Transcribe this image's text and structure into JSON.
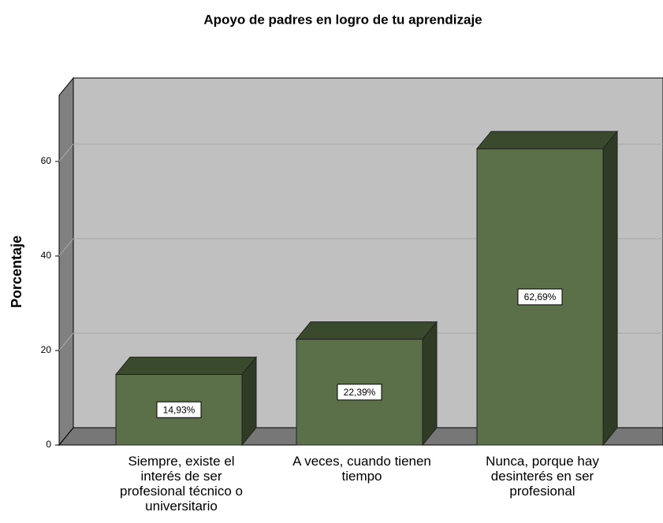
{
  "chart_data": {
    "type": "bar3d",
    "title": "Apoyo de padres en logro de tu aprendizaje",
    "ylabel": "Porcentaje",
    "categories": [
      "Siempre, existe el interés de ser profesional técnico o universitario",
      "A veces, cuando tienen tiempo",
      "Nunca, porque hay desinterés en ser profesional"
    ],
    "values": [
      14.93,
      22.39,
      62.69
    ],
    "value_labels": [
      "14,93%",
      "22,39%",
      "62,69%"
    ],
    "color": "#5b7049",
    "ylim": [
      0,
      74
    ],
    "yticks": [
      0,
      20,
      40,
      60
    ],
    "grid": true
  }
}
